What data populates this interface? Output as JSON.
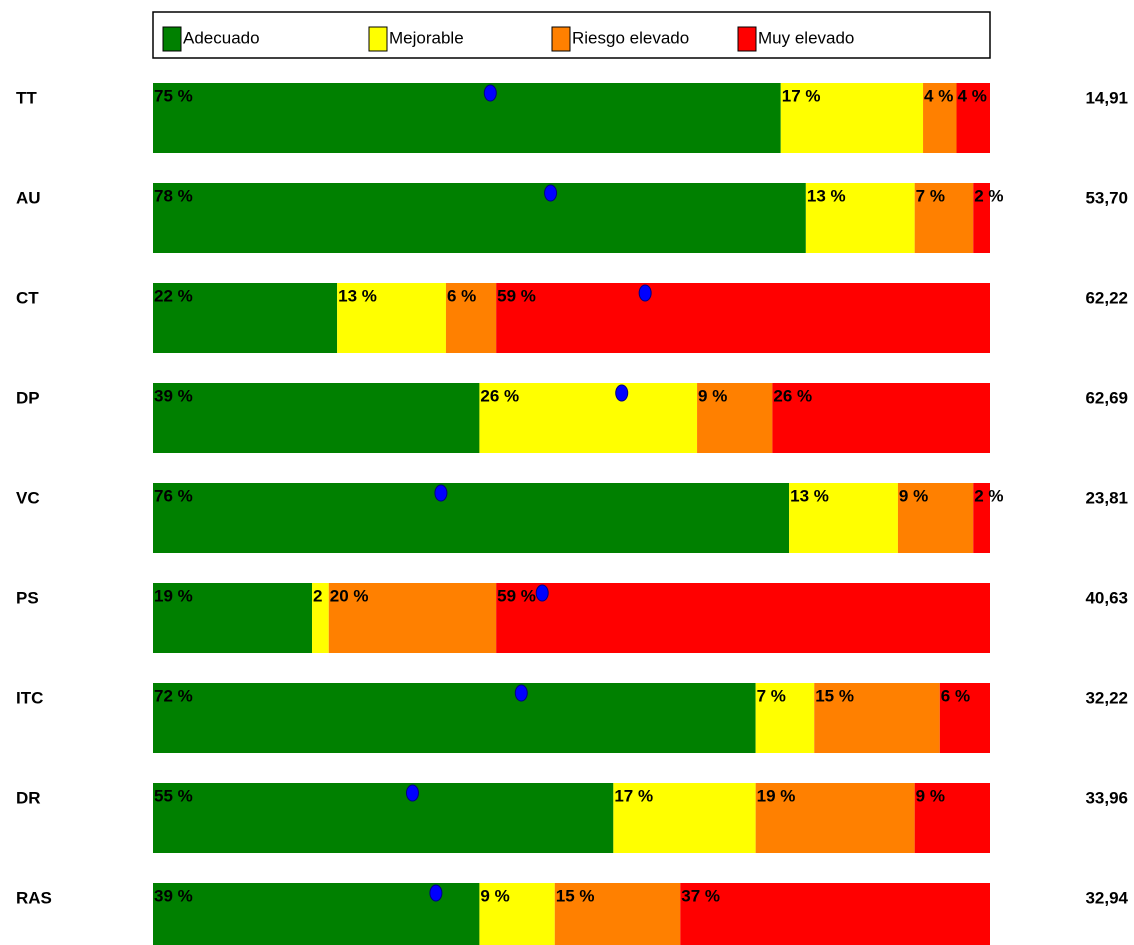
{
  "chart_data": {
    "type": "stacked-bar-horizontal",
    "categories": [
      "TT",
      "AU",
      "CT",
      "DP",
      "VC",
      "PS",
      "ITC",
      "DR",
      "RAS"
    ],
    "xlim": [
      0,
      100
    ],
    "series": [
      {
        "name": "Adecuado",
        "color": "#008000",
        "values": [
          75,
          78,
          22,
          39,
          76,
          19,
          72,
          55,
          39
        ],
        "value_labels": [
          "75 %",
          "78 %",
          "22 %",
          "39 %",
          "76 %",
          "19 %",
          "72 %",
          "55 %",
          "39 %"
        ]
      },
      {
        "name": "Mejorable",
        "color": "#ffff00",
        "values": [
          17,
          13,
          13,
          26,
          13,
          2,
          7,
          17,
          9
        ],
        "value_labels": [
          "17 %",
          "13 %",
          "13 %",
          "26 %",
          "13 %",
          "2",
          "7 %",
          "17 %",
          "9 %"
        ]
      },
      {
        "name": "Riesgo elevado",
        "color": "#ff8000",
        "values": [
          4,
          7,
          6,
          9,
          9,
          20,
          15,
          19,
          15
        ],
        "value_labels": [
          "4 %",
          "7 %",
          "6 %",
          "9 %",
          "9 %",
          "20 %",
          "15 %",
          "19 %",
          "15 %"
        ]
      },
      {
        "name": "Muy elevado",
        "color": "#ff0000",
        "values": [
          4,
          2,
          59,
          26,
          2,
          59,
          6,
          9,
          37
        ],
        "value_labels": [
          "4 %",
          "2 %",
          "59 %",
          "26 %",
          "2 %",
          "59 %",
          "6 %",
          "9 %",
          "37 %"
        ]
      }
    ],
    "markers": {
      "color": "#0000ff",
      "values": [
        40.3,
        47.5,
        58.8,
        56,
        34.4,
        46.5,
        44,
        31,
        33.8
      ]
    },
    "scores": [
      {
        "value": 14.91,
        "label": "14,91"
      },
      {
        "value": 53.7,
        "label": "53,70"
      },
      {
        "value": 62.22,
        "label": "62,22"
      },
      {
        "value": 62.69,
        "label": "62,69"
      },
      {
        "value": 23.81,
        "label": "23,81"
      },
      {
        "value": 40.63,
        "label": "40,63"
      },
      {
        "value": 32.22,
        "label": "32,22"
      },
      {
        "value": 33.96,
        "label": "33,96"
      },
      {
        "value": 32.94,
        "label": "32,94"
      }
    ]
  }
}
